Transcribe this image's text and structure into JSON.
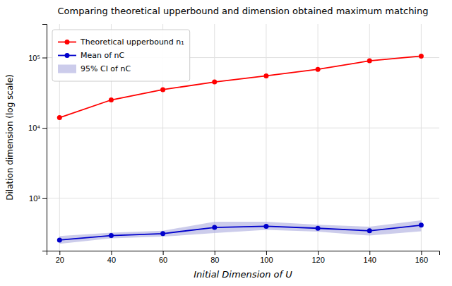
{
  "chart_data": {
    "type": "line",
    "title": "Comparing theoretical upperbound and dimension obtained maximum matching",
    "x_label": "Initial Dimension of U",
    "y_label": "Dilation dimension (log scale)",
    "x": [
      20,
      40,
      60,
      80,
      100,
      120,
      140,
      160
    ],
    "series": [
      {
        "name": "Theoretical upperbound n₁",
        "color": "#ff0000",
        "marker": "circle",
        "values": [
          14000,
          25000,
          35000,
          45000,
          55000,
          68000,
          90000,
          105000
        ]
      },
      {
        "name": "Mean of nC",
        "color": "#0000cc",
        "marker": "circle",
        "values": [
          255,
          295,
          315,
          385,
          400,
          375,
          345,
          415
        ]
      },
      {
        "name": "95% CI of nC",
        "type": "area",
        "color": "#aaaadd",
        "lower": [
          225,
          270,
          285,
          320,
          355,
          335,
          295,
          340
        ],
        "upper": [
          290,
          325,
          345,
          465,
          465,
          420,
          395,
          485
        ]
      }
    ],
    "xlim": [
      15,
      167
    ],
    "xticks": [
      20,
      40,
      60,
      80,
      100,
      120,
      140,
      160
    ],
    "ylim": [
      180,
      300000
    ],
    "yticks": [
      {
        "value": 1000,
        "label": "10³"
      },
      {
        "value": 10000,
        "label": "10⁴"
      },
      {
        "value": 100000,
        "label": "10⁵"
      }
    ],
    "log": "y",
    "grid": true,
    "legend": "upper left"
  }
}
